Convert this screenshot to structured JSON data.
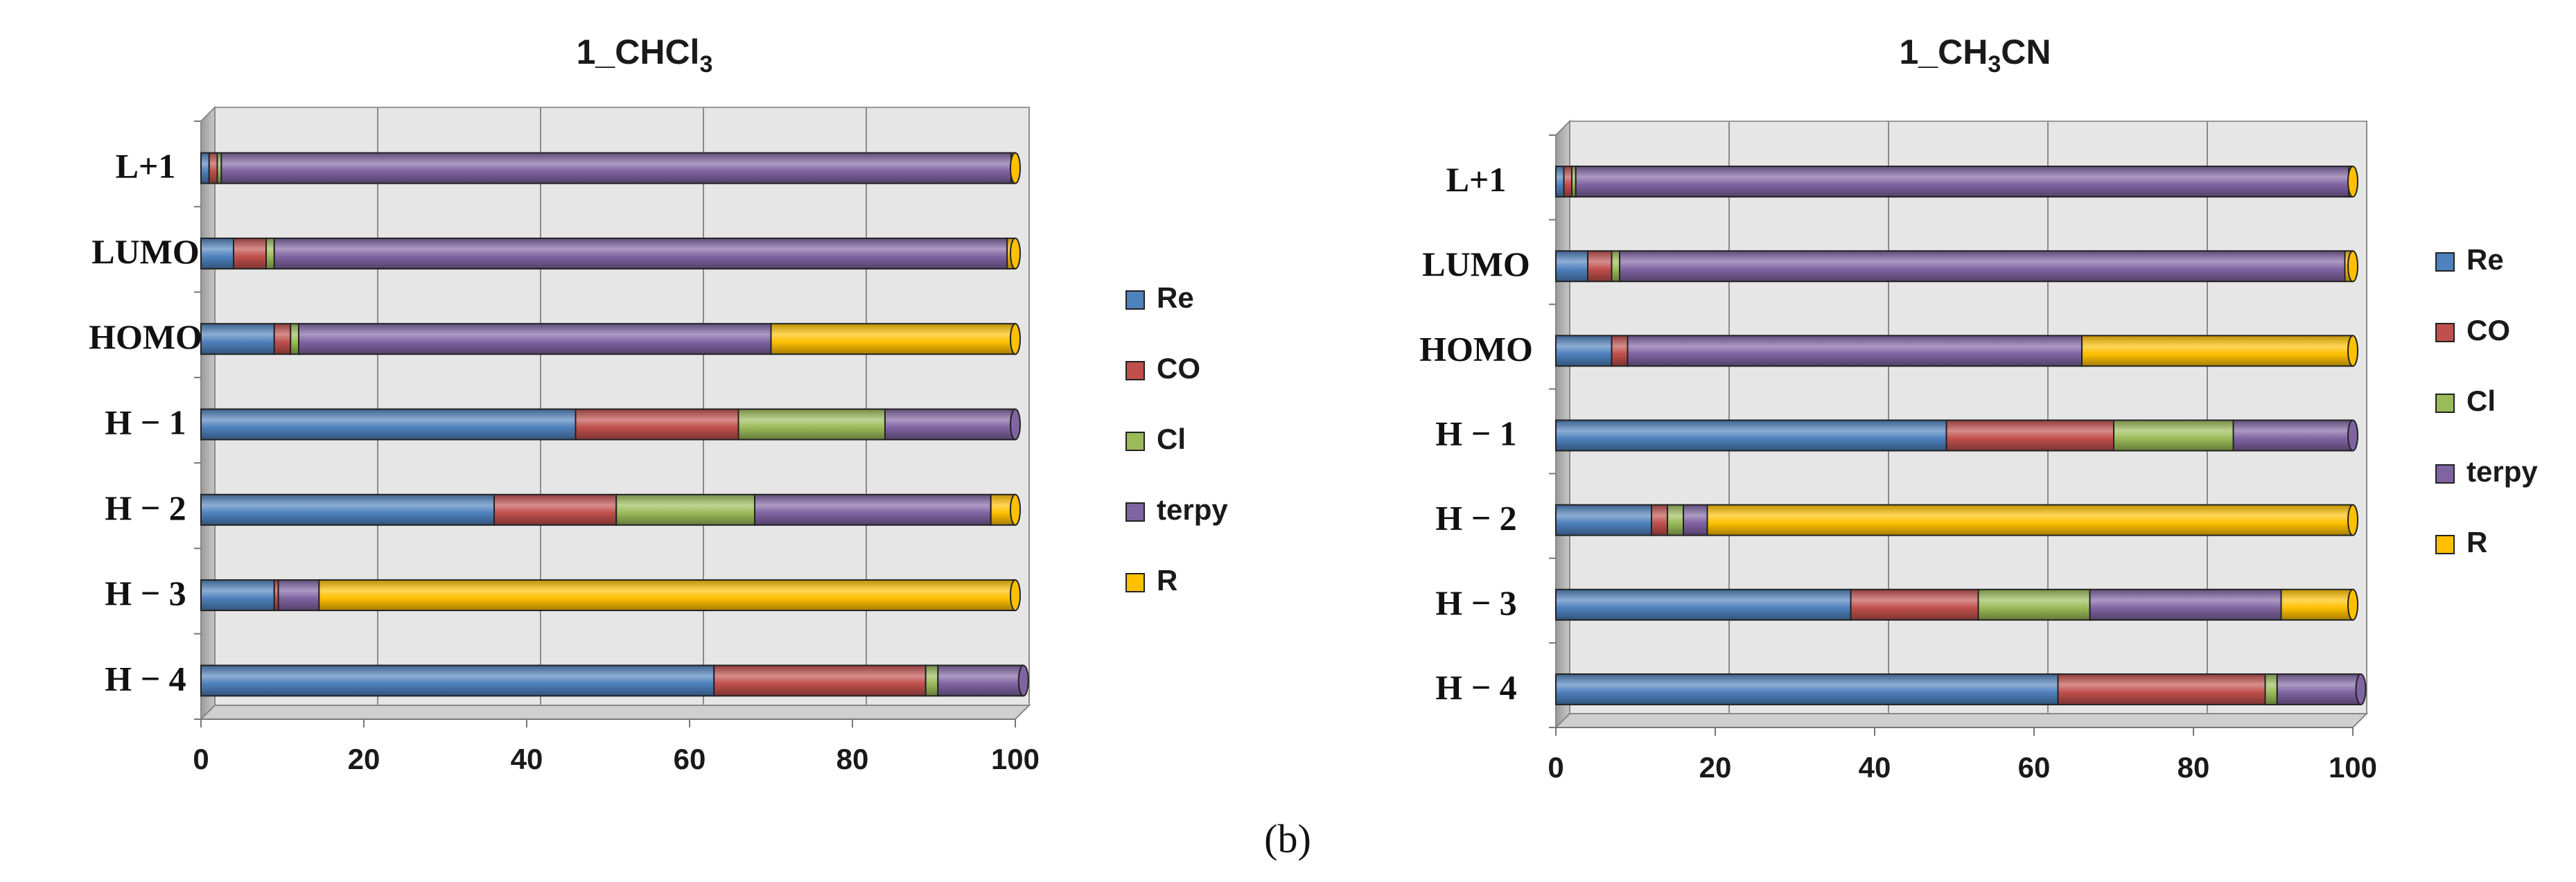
{
  "caption": "(b)",
  "colors": {
    "Re": "#4f81bd",
    "CO": "#c0504d",
    "Cl": "#9bbb59",
    "terpy": "#8064a2",
    "R": "#ffc000"
  },
  "chart_data": [
    {
      "type": "bar",
      "orientation": "horizontal",
      "stacked": true,
      "title_main": "1_CHCl",
      "title_sub": "3",
      "title_end": "",
      "categories": [
        "L+1",
        "LUMO",
        "HOMO",
        "H − 1",
        "H − 2",
        "H − 3",
        "H − 4"
      ],
      "series": [
        {
          "name": "Re",
          "values": [
            1,
            4,
            9,
            46,
            36,
            9,
            63
          ]
        },
        {
          "name": "CO",
          "values": [
            1,
            4,
            2,
            20,
            15,
            0.5,
            26
          ]
        },
        {
          "name": "Cl",
          "values": [
            0.5,
            1,
            1,
            18,
            17,
            0,
            1.5
          ]
        },
        {
          "name": "terpy",
          "values": [
            97,
            90,
            58,
            16,
            29,
            5,
            10.5
          ]
        },
        {
          "name": "R",
          "values": [
            0.5,
            1,
            30,
            0,
            3,
            85.5,
            0
          ]
        }
      ],
      "xlim": [
        0,
        100
      ],
      "xticks": [
        "0",
        "20",
        "40",
        "60",
        "80",
        "100"
      ],
      "legend": [
        "Re",
        "CO",
        "Cl",
        "terpy",
        "R"
      ],
      "legend_position": "right",
      "grid": true
    },
    {
      "type": "bar",
      "orientation": "horizontal",
      "stacked": true,
      "title_main": "1_CH",
      "title_sub": "3",
      "title_end": "CN",
      "categories": [
        "L+1",
        "LUMO",
        "HOMO",
        "H − 1",
        "H − 2",
        "H − 3",
        "H − 4"
      ],
      "series": [
        {
          "name": "Re",
          "values": [
            1,
            4,
            7,
            49,
            12,
            37,
            63
          ]
        },
        {
          "name": "CO",
          "values": [
            1,
            3,
            2,
            21,
            2,
            16,
            26
          ]
        },
        {
          "name": "Cl",
          "values": [
            0.5,
            1,
            0,
            15,
            2,
            14,
            1.5
          ]
        },
        {
          "name": "terpy",
          "values": [
            97,
            91,
            57,
            15,
            3,
            24,
            10.5
          ]
        },
        {
          "name": "R",
          "values": [
            0.5,
            1,
            34,
            0,
            81,
            9,
            0
          ]
        }
      ],
      "xlim": [
        0,
        100
      ],
      "xticks": [
        "0",
        "20",
        "40",
        "60",
        "80",
        "100"
      ],
      "legend": [
        "Re",
        "CO",
        "Cl",
        "terpy",
        "R"
      ],
      "legend_position": "right",
      "grid": true
    }
  ]
}
